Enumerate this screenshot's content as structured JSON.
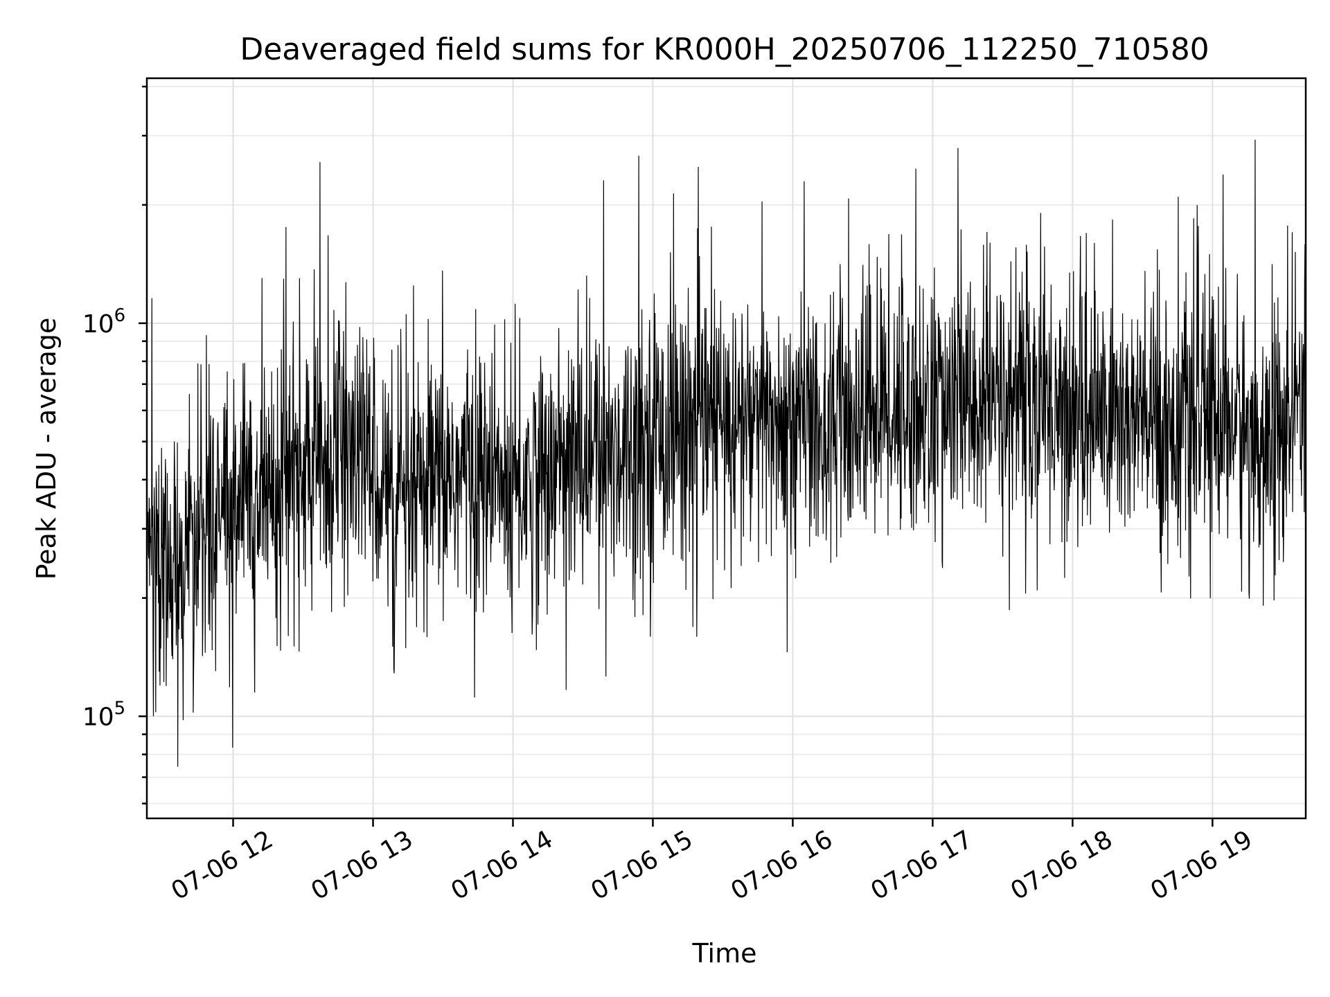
{
  "chart_data": {
    "type": "line",
    "title": "Deaveraged field sums for KR000H_20250706_112250_710580",
    "xlabel": "Time",
    "ylabel": "Peak ADU - average",
    "xscale": "time",
    "yscale": "log",
    "xlim": [
      "2025-07-06T11:23:00",
      "2025-07-06T19:40:00"
    ],
    "ylim": [
      55000,
      4200000
    ],
    "grid": true,
    "x_ticks": [
      "07-06 12",
      "07-06 13",
      "07-06 14",
      "07-06 15",
      "07-06 16",
      "07-06 17",
      "07-06 18",
      "07-06 19"
    ],
    "y_ticks": [
      {
        "base": "10",
        "exp": "5",
        "value": 100000
      },
      {
        "base": "10",
        "exp": "6",
        "value": 1000000
      }
    ],
    "line_color": "#000000",
    "series": [
      {
        "x": [
          "2025-07-06T11:23:00",
          "2025-07-06T11:30:00",
          "2025-07-06T11:37:00",
          "2025-07-06T11:45:00",
          "2025-07-06T11:52:00",
          "2025-07-06T12:00:00",
          "2025-07-06T12:10:00",
          "2025-07-06T12:20:00",
          "2025-07-06T12:30:00",
          "2025-07-06T12:40:00",
          "2025-07-06T12:50:00",
          "2025-07-06T13:00:00",
          "2025-07-06T13:10:00",
          "2025-07-06T13:20:00",
          "2025-07-06T13:30:00",
          "2025-07-06T13:40:00",
          "2025-07-06T13:50:00",
          "2025-07-06T14:00:00",
          "2025-07-06T14:10:00",
          "2025-07-06T14:20:00",
          "2025-07-06T14:30:00",
          "2025-07-06T14:40:00",
          "2025-07-06T14:50:00",
          "2025-07-06T15:00:00",
          "2025-07-06T15:10:00",
          "2025-07-06T15:20:00",
          "2025-07-06T15:30:00",
          "2025-07-06T15:40:00",
          "2025-07-06T15:50:00",
          "2025-07-06T16:00:00",
          "2025-07-06T16:10:00",
          "2025-07-06T16:20:00",
          "2025-07-06T16:30:00",
          "2025-07-06T16:40:00",
          "2025-07-06T16:50:00",
          "2025-07-06T17:00:00",
          "2025-07-06T17:10:00",
          "2025-07-06T17:20:00",
          "2025-07-06T17:30:00",
          "2025-07-06T17:40:00",
          "2025-07-06T17:50:00",
          "2025-07-06T18:00:00",
          "2025-07-06T18:10:00",
          "2025-07-06T18:20:00",
          "2025-07-06T18:30:00",
          "2025-07-06T18:40:00",
          "2025-07-06T18:50:00",
          "2025-07-06T19:00:00",
          "2025-07-06T19:10:00",
          "2025-07-06T19:20:00",
          "2025-07-06T19:30:00",
          "2025-07-06T19:40:00"
        ],
        "y": [
          280000,
          230000,
          250000,
          300000,
          320000,
          350000,
          380000,
          400000,
          420000,
          440000,
          460000,
          450000,
          340000,
          350000,
          400000,
          420000,
          390000,
          380000,
          400000,
          430000,
          450000,
          470000,
          500000,
          520000,
          540000,
          560000,
          570000,
          560000,
          560000,
          570000,
          560000,
          550000,
          600000,
          620000,
          610000,
          600000,
          610000,
          620000,
          630000,
          640000,
          640000,
          600000,
          590000,
          580000,
          560000,
          550000,
          560000,
          600000,
          560000,
          480000,
          540000,
          600000
        ]
      }
    ]
  }
}
